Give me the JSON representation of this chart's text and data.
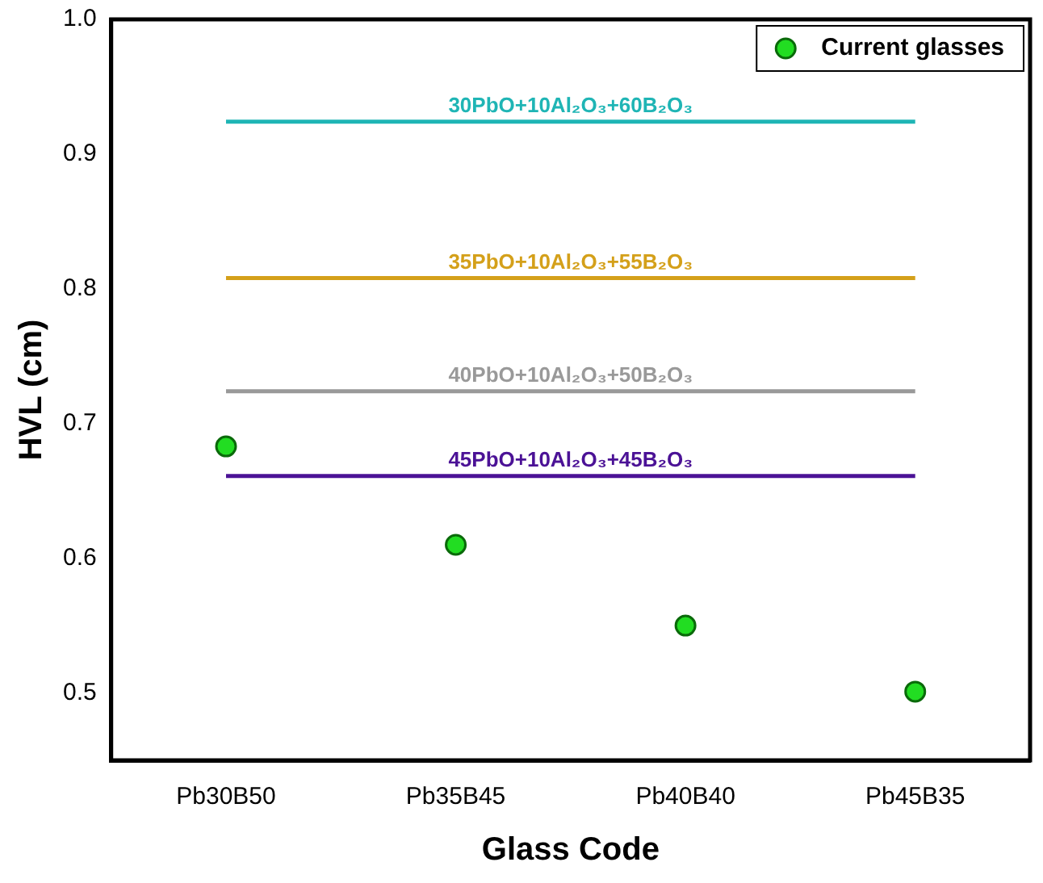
{
  "chart_data": {
    "type": "scatter",
    "xlabel": "Glass Code",
    "ylabel": "HVL (cm)",
    "categories": [
      "Pb30B50",
      "Pb35B45",
      "Pb40B40",
      "Pb45B35"
    ],
    "ylim": [
      0.45,
      1.0
    ],
    "yticks": [
      0.5,
      0.6,
      0.7,
      0.8,
      0.9,
      {
        "value": 1.0,
        "label": "1.0"
      }
    ],
    "legend": "top right",
    "grid": false,
    "series": [
      {
        "name": "Current glasses",
        "marker": "circle",
        "color": "#22dd22",
        "values": [
          0.683,
          0.61,
          0.55,
          0.501
        ]
      },
      {
        "name": "30PbO+10Al₂O₃+60B₂O₃",
        "type": "line",
        "marker": "none",
        "color": "#1fb5b5",
        "values": [
          0.924,
          0.924,
          0.924,
          0.924
        ]
      },
      {
        "name": "35PbO+10Al₂O₃+55B₂O₃",
        "type": "line",
        "marker": "none",
        "color": "#d4a01a",
        "values": [
          0.808,
          0.808,
          0.808,
          0.808
        ]
      },
      {
        "name": "40PbO+10Al₂O₃+50B₂O₃",
        "type": "line",
        "marker": "none",
        "color": "#999999",
        "values": [
          0.724,
          0.724,
          0.724,
          0.724
        ]
      },
      {
        "name": "45PbO+10Al₂O₃+45B₂O₃",
        "type": "line",
        "marker": "none",
        "color": "#4b1296",
        "values": [
          0.661,
          0.661,
          0.661,
          0.661
        ]
      }
    ]
  }
}
